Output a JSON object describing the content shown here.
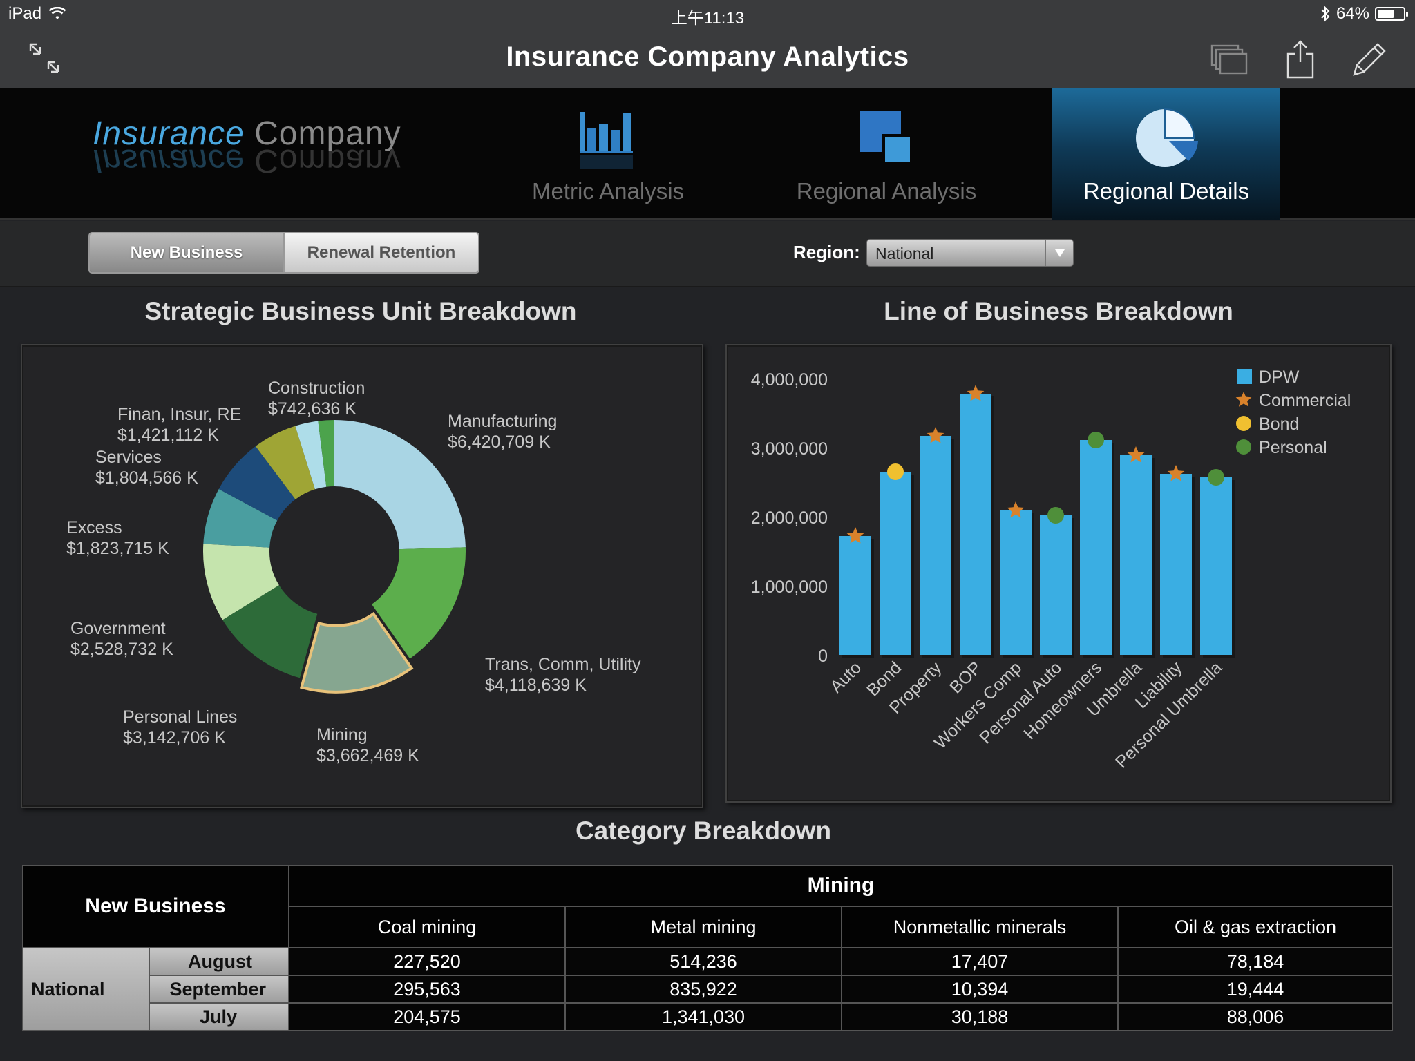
{
  "status": {
    "device": "iPad",
    "time": "上午11:13",
    "battery": "64%",
    "battery_fraction": 0.64
  },
  "nav": {
    "title": "Insurance Company Analytics"
  },
  "logo": {
    "part1": "Insurance",
    "part2": "Company"
  },
  "header_tabs": [
    {
      "label": "Metric Analysis",
      "icon": "bar-chart-icon",
      "active": false
    },
    {
      "label": "Regional Analysis",
      "icon": "squares-icon",
      "active": false
    },
    {
      "label": "Regional Details",
      "icon": "pie-chart-icon",
      "active": true
    }
  ],
  "segmented": {
    "option1": "New Business",
    "option2": "Renewal Retention",
    "selected": "New Business"
  },
  "region": {
    "label": "Region:",
    "value": "National"
  },
  "sections": {
    "sbu_title": "Strategic Business Unit Breakdown",
    "lob_title": "Line of Business Breakdown",
    "category_title": "Category Breakdown"
  },
  "chart_data": [
    {
      "type": "pie",
      "title": "Strategic Business Unit Breakdown",
      "slices": [
        {
          "name": "Manufacturing",
          "label": "$6,420,709 K",
          "value": 6420709,
          "color": "#a9d5e4"
        },
        {
          "name": "Trans, Comm, Utility",
          "label": "$4,118,639 K",
          "value": 4118639,
          "color": "#5cae4c"
        },
        {
          "name": "Mining",
          "label": "$3,662,469 K",
          "value": 3662469,
          "color": "#86a690",
          "highlighted": true
        },
        {
          "name": "Personal Lines",
          "label": "$3,142,706 K",
          "value": 3142706,
          "color": "#2d6b39"
        },
        {
          "name": "Government",
          "label": "$2,528,732 K",
          "value": 2528732,
          "color": "#c5e4ad"
        },
        {
          "name": "Excess",
          "label": "$1,823,715 K",
          "value": 1823715,
          "color": "#4a9ea0"
        },
        {
          "name": "Services",
          "label": "$1,804,566 K",
          "value": 1804566,
          "color": "#1d4b7a"
        },
        {
          "name": "Finan, Insur, RE",
          "label": "$1,421,112 K",
          "value": 1421112,
          "color": "#9fa535"
        },
        {
          "name": "Construction",
          "label": "$742,636 K",
          "value": 742636,
          "color": "#aedde9"
        },
        {
          "name": "",
          "label": "",
          "value": 520000,
          "color": "#4ca34c"
        }
      ]
    },
    {
      "type": "bar",
      "title": "Line of Business Breakdown",
      "categories": [
        "Auto",
        "Bond",
        "Property",
        "BOP",
        "Workers Comp",
        "Personal Auto",
        "Homeowners",
        "Umbrella",
        "Liability",
        "Personal Umbrella"
      ],
      "series": [
        {
          "name": "DPW",
          "values": [
            1720000,
            2650000,
            3170000,
            3780000,
            2090000,
            2020000,
            3110000,
            2890000,
            2620000,
            2570000
          ],
          "color": "#3aaee3",
          "marker": "bar"
        },
        {
          "name": "Commercial",
          "color": "#d9822b",
          "marker": "star"
        },
        {
          "name": "Bond",
          "color": "#f0c030",
          "marker": "circle"
        },
        {
          "name": "Personal",
          "color": "#4f8f3a",
          "marker": "circle"
        }
      ],
      "point_markers": [
        "Commercial",
        "Bond",
        "Commercial",
        "Commercial",
        "Commercial",
        "Personal",
        "Personal",
        "Commercial",
        "Commercial",
        "Personal"
      ],
      "yticks": [
        "0",
        "1,000,000",
        "2,000,000",
        "3,000,000",
        "4,000,000"
      ],
      "ylim": [
        0,
        4000000
      ]
    }
  ],
  "table": {
    "corner": "New Business",
    "group": "Mining",
    "columns": [
      "Coal mining",
      "Metal mining",
      "Nonmetallic minerals",
      "Oil & gas extraction"
    ],
    "region": "National",
    "rows": [
      {
        "month": "August",
        "values": [
          "227,520",
          "514,236",
          "17,407",
          "78,184"
        ]
      },
      {
        "month": "September",
        "values": [
          "295,563",
          "835,922",
          "10,394",
          "19,444"
        ]
      },
      {
        "month": "July",
        "values": [
          "204,575",
          "1,341,030",
          "30,188",
          "88,006"
        ]
      }
    ]
  }
}
